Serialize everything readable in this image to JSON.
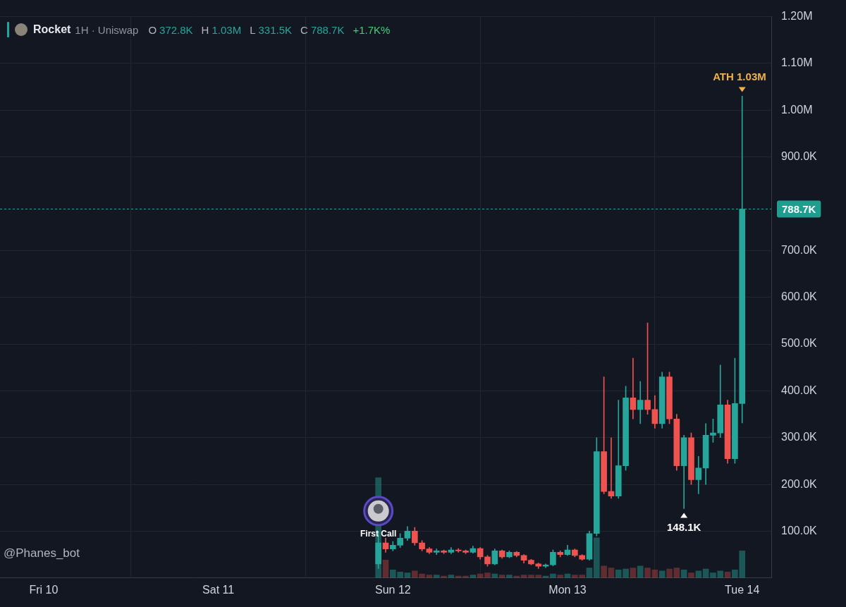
{
  "chart_data": {
    "type": "candlestick",
    "title": "Rocket",
    "subtitle": "1H · Uniswap",
    "header": [
      {
        "label": "O",
        "value": 372800,
        "text": "372.8K"
      },
      {
        "label": "H",
        "value": 1030000,
        "text": "1.03M"
      },
      {
        "label": "L",
        "value": 331500,
        "text": "331.5K"
      },
      {
        "label": "C",
        "value": 788700,
        "text": "788.7K"
      }
    ],
    "change": {
      "value": 1700,
      "label": "+1.7K%"
    },
    "x": [
      46,
      47,
      48,
      49,
      50,
      51,
      52,
      53,
      54,
      55,
      56,
      57,
      58,
      59,
      60,
      61,
      62,
      63,
      64,
      65,
      66,
      67,
      68,
      69,
      70,
      71,
      72,
      73,
      74,
      75,
      76,
      77,
      78,
      79,
      80,
      81,
      82,
      83,
      84,
      85,
      86,
      87,
      88,
      89,
      90,
      91,
      92,
      93,
      94,
      95,
      96
    ],
    "open": [
      30000,
      75000,
      62000,
      70000,
      85000,
      100000,
      75000,
      62000,
      55000,
      58000,
      55000,
      60000,
      58000,
      55000,
      63000,
      45000,
      30000,
      58000,
      45000,
      55000,
      48000,
      38000,
      30000,
      25000,
      28000,
      55000,
      50000,
      60000,
      48000,
      40000,
      95000,
      270000,
      185000,
      175000,
      240000,
      385000,
      360000,
      380000,
      360000,
      330000,
      430000,
      340000,
      240000,
      300000,
      210000,
      235000,
      305000,
      310000,
      370000,
      255000,
      372800
    ],
    "high": [
      100000,
      85000,
      78000,
      95000,
      110000,
      108000,
      80000,
      65000,
      62000,
      60000,
      65000,
      63000,
      60000,
      68000,
      65000,
      48000,
      62000,
      60000,
      58000,
      57000,
      50000,
      40000,
      32000,
      30000,
      60000,
      58000,
      70000,
      62000,
      50000,
      100000,
      300000,
      430000,
      300000,
      380000,
      410000,
      470000,
      420000,
      545000,
      390000,
      440000,
      440000,
      350000,
      305000,
      310000,
      260000,
      330000,
      340000,
      455000,
      380000,
      470000,
      1030000
    ],
    "low": [
      20000,
      55000,
      58000,
      65000,
      80000,
      70000,
      58000,
      52000,
      50000,
      52000,
      52000,
      55000,
      52000,
      53000,
      40000,
      25000,
      28000,
      42000,
      43000,
      45000,
      32000,
      28000,
      20000,
      22000,
      26000,
      45000,
      48000,
      45000,
      38000,
      38000,
      90000,
      180000,
      170000,
      170000,
      230000,
      340000,
      330000,
      350000,
      320000,
      320000,
      330000,
      230000,
      148100,
      200000,
      180000,
      200000,
      290000,
      300000,
      245000,
      245000,
      331500
    ],
    "close": [
      75000,
      62000,
      70000,
      85000,
      100000,
      75000,
      62000,
      55000,
      58000,
      55000,
      60000,
      58000,
      55000,
      63000,
      45000,
      30000,
      58000,
      45000,
      55000,
      48000,
      38000,
      30000,
      25000,
      28000,
      55000,
      50000,
      60000,
      48000,
      40000,
      95000,
      270000,
      185000,
      175000,
      240000,
      385000,
      360000,
      380000,
      360000,
      330000,
      430000,
      340000,
      240000,
      300000,
      210000,
      235000,
      305000,
      310000,
      370000,
      255000,
      372800,
      788700
    ],
    "volume": [
      100,
      18,
      8,
      6,
      5,
      7,
      4,
      3,
      3,
      2,
      3,
      2,
      2,
      3,
      4,
      5,
      4,
      3,
      3,
      2,
      3,
      3,
      3,
      2,
      4,
      3,
      4,
      3,
      3,
      10,
      40,
      12,
      10,
      8,
      9,
      10,
      12,
      10,
      8,
      7,
      9,
      10,
      8,
      5,
      7,
      9,
      5,
      7,
      6,
      8,
      27
    ],
    "xlim": [
      -6,
      100
    ],
    "xticks": [
      {
        "value": 0,
        "label": "Fri 10"
      },
      {
        "value": 24,
        "label": "Sat 11"
      },
      {
        "value": 48,
        "label": "Sun 12"
      },
      {
        "value": 72,
        "label": "Mon 13"
      },
      {
        "value": 96,
        "label": "Tue 14"
      }
    ],
    "ylim": [
      0,
      1200000
    ],
    "yticks": [
      {
        "value": 100000,
        "label": "100.0K"
      },
      {
        "value": 200000,
        "label": "200.0K"
      },
      {
        "value": 300000,
        "label": "300.0K"
      },
      {
        "value": 400000,
        "label": "400.0K"
      },
      {
        "value": 500000,
        "label": "500.0K"
      },
      {
        "value": 600000,
        "label": "600.0K"
      },
      {
        "value": 700000,
        "label": "700.0K"
      },
      {
        "value": 900000,
        "label": "900.0K"
      },
      {
        "value": 1000000,
        "label": "1.00M"
      },
      {
        "value": 1100000,
        "label": "1.10M"
      },
      {
        "value": 1200000,
        "label": "1.20M"
      }
    ],
    "y2lim": [
      0,
      560
    ],
    "y2ticks": [],
    "grid": true,
    "last_price": {
      "value": 788700,
      "label": "788.7K"
    },
    "annotations": [
      {
        "text": "ATH 1.03M",
        "x": 96,
        "y": 1030000
      },
      {
        "text": "148.1K",
        "x": 88,
        "y": 148100
      },
      {
        "text": "First Call",
        "x": 46
      }
    ],
    "watermark": "@Phanes_bot"
  }
}
